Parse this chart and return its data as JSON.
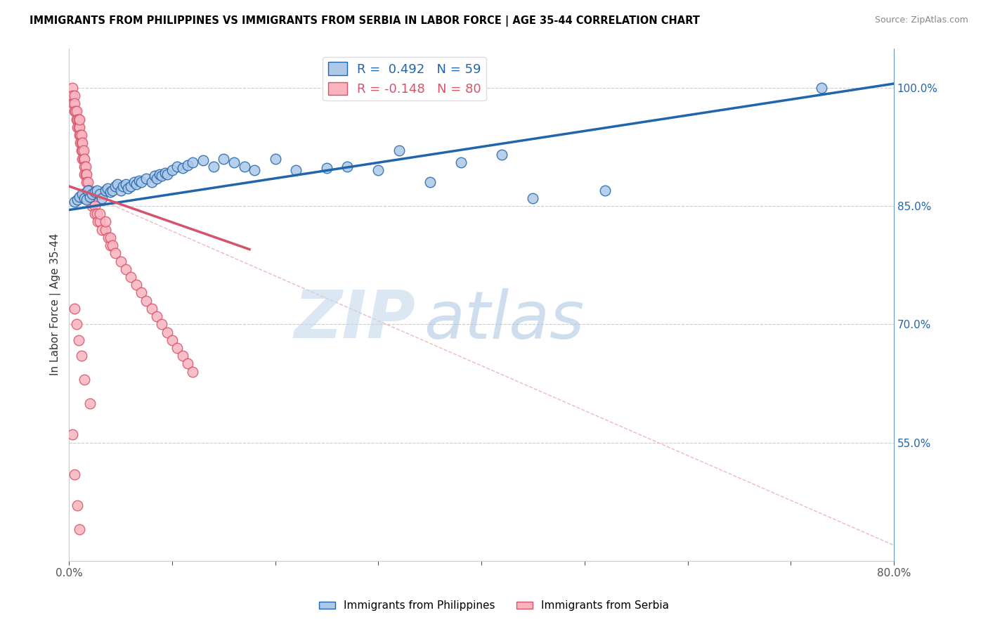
{
  "title": "IMMIGRANTS FROM PHILIPPINES VS IMMIGRANTS FROM SERBIA IN LABOR FORCE | AGE 35-44 CORRELATION CHART",
  "source": "Source: ZipAtlas.com",
  "ylabel": "In Labor Force | Age 35-44",
  "xlim": [
    0.0,
    0.8
  ],
  "ylim": [
    0.4,
    1.05
  ],
  "xtick_positions": [
    0.0,
    0.1,
    0.2,
    0.3,
    0.4,
    0.5,
    0.6,
    0.7,
    0.8
  ],
  "xticklabels": [
    "0.0%",
    "",
    "",
    "",
    "",
    "",
    "",
    "",
    "80.0%"
  ],
  "yticks_right": [
    0.55,
    0.7,
    0.85,
    1.0
  ],
  "ytick_right_labels": [
    "55.0%",
    "70.0%",
    "85.0%",
    "100.0%"
  ],
  "legend_blue_r_val": "0.492",
  "legend_blue_n_val": "59",
  "legend_pink_r_val": "-0.148",
  "legend_pink_n_val": "80",
  "blue_color": "#adc8e8",
  "blue_line_color": "#2166ac",
  "pink_color": "#f9b4c0",
  "pink_line_color": "#d6546a",
  "pink_dash_color": "#f0b8c0",
  "watermark_zip": "ZIP",
  "watermark_atlas": "atlas",
  "legend_label_blue": "Immigrants from Philippines",
  "legend_label_pink": "Immigrants from Serbia",
  "blue_scatter_x": [
    0.005,
    0.008,
    0.01,
    0.013,
    0.015,
    0.017,
    0.018,
    0.02,
    0.022,
    0.025,
    0.027,
    0.03,
    0.032,
    0.035,
    0.037,
    0.04,
    0.042,
    0.045,
    0.047,
    0.05,
    0.052,
    0.055,
    0.057,
    0.06,
    0.063,
    0.065,
    0.068,
    0.07,
    0.075,
    0.08,
    0.083,
    0.085,
    0.088,
    0.09,
    0.093,
    0.095,
    0.1,
    0.105,
    0.11,
    0.115,
    0.12,
    0.13,
    0.14,
    0.15,
    0.16,
    0.17,
    0.18,
    0.2,
    0.22,
    0.25,
    0.27,
    0.3,
    0.32,
    0.35,
    0.38,
    0.42,
    0.45,
    0.52,
    0.73
  ],
  "blue_scatter_y": [
    0.855,
    0.858,
    0.862,
    0.865,
    0.86,
    0.858,
    0.87,
    0.862,
    0.865,
    0.868,
    0.87,
    0.865,
    0.86,
    0.87,
    0.872,
    0.868,
    0.87,
    0.875,
    0.878,
    0.87,
    0.875,
    0.878,
    0.872,
    0.875,
    0.88,
    0.878,
    0.882,
    0.88,
    0.885,
    0.88,
    0.888,
    0.885,
    0.89,
    0.888,
    0.892,
    0.89,
    0.895,
    0.9,
    0.898,
    0.902,
    0.905,
    0.908,
    0.9,
    0.91,
    0.905,
    0.9,
    0.895,
    0.91,
    0.895,
    0.898,
    0.9,
    0.895,
    0.92,
    0.88,
    0.905,
    0.915,
    0.86,
    0.87,
    1.0
  ],
  "pink_scatter_x": [
    0.003,
    0.003,
    0.004,
    0.005,
    0.005,
    0.005,
    0.006,
    0.007,
    0.007,
    0.008,
    0.008,
    0.009,
    0.009,
    0.01,
    0.01,
    0.01,
    0.011,
    0.011,
    0.012,
    0.012,
    0.012,
    0.013,
    0.013,
    0.013,
    0.014,
    0.014,
    0.015,
    0.015,
    0.015,
    0.016,
    0.016,
    0.017,
    0.017,
    0.018,
    0.018,
    0.019,
    0.019,
    0.02,
    0.02,
    0.022,
    0.022,
    0.025,
    0.025,
    0.027,
    0.028,
    0.03,
    0.03,
    0.032,
    0.035,
    0.035,
    0.038,
    0.04,
    0.04,
    0.042,
    0.045,
    0.05,
    0.055,
    0.06,
    0.065,
    0.07,
    0.075,
    0.08,
    0.085,
    0.09,
    0.095,
    0.1,
    0.105,
    0.11,
    0.115,
    0.12,
    0.005,
    0.007,
    0.009,
    0.012,
    0.015,
    0.02,
    0.003,
    0.005,
    0.008,
    0.01
  ],
  "pink_scatter_y": [
    1.0,
    0.99,
    0.98,
    0.97,
    0.99,
    0.98,
    0.97,
    0.96,
    0.97,
    0.96,
    0.95,
    0.95,
    0.96,
    0.94,
    0.95,
    0.96,
    0.94,
    0.93,
    0.93,
    0.94,
    0.92,
    0.92,
    0.93,
    0.91,
    0.91,
    0.92,
    0.91,
    0.9,
    0.89,
    0.9,
    0.89,
    0.89,
    0.88,
    0.88,
    0.87,
    0.87,
    0.86,
    0.86,
    0.87,
    0.86,
    0.85,
    0.85,
    0.84,
    0.84,
    0.83,
    0.83,
    0.84,
    0.82,
    0.82,
    0.83,
    0.81,
    0.8,
    0.81,
    0.8,
    0.79,
    0.78,
    0.77,
    0.76,
    0.75,
    0.74,
    0.73,
    0.72,
    0.71,
    0.7,
    0.69,
    0.68,
    0.67,
    0.66,
    0.65,
    0.64,
    0.72,
    0.7,
    0.68,
    0.66,
    0.63,
    0.6,
    0.56,
    0.51,
    0.47,
    0.44
  ],
  "blue_trendline_x": [
    0.0,
    0.8
  ],
  "blue_trendline_y": [
    0.845,
    1.005
  ],
  "pink_trendline_x": [
    0.0,
    0.175
  ],
  "pink_trendline_y": [
    0.875,
    0.795
  ]
}
